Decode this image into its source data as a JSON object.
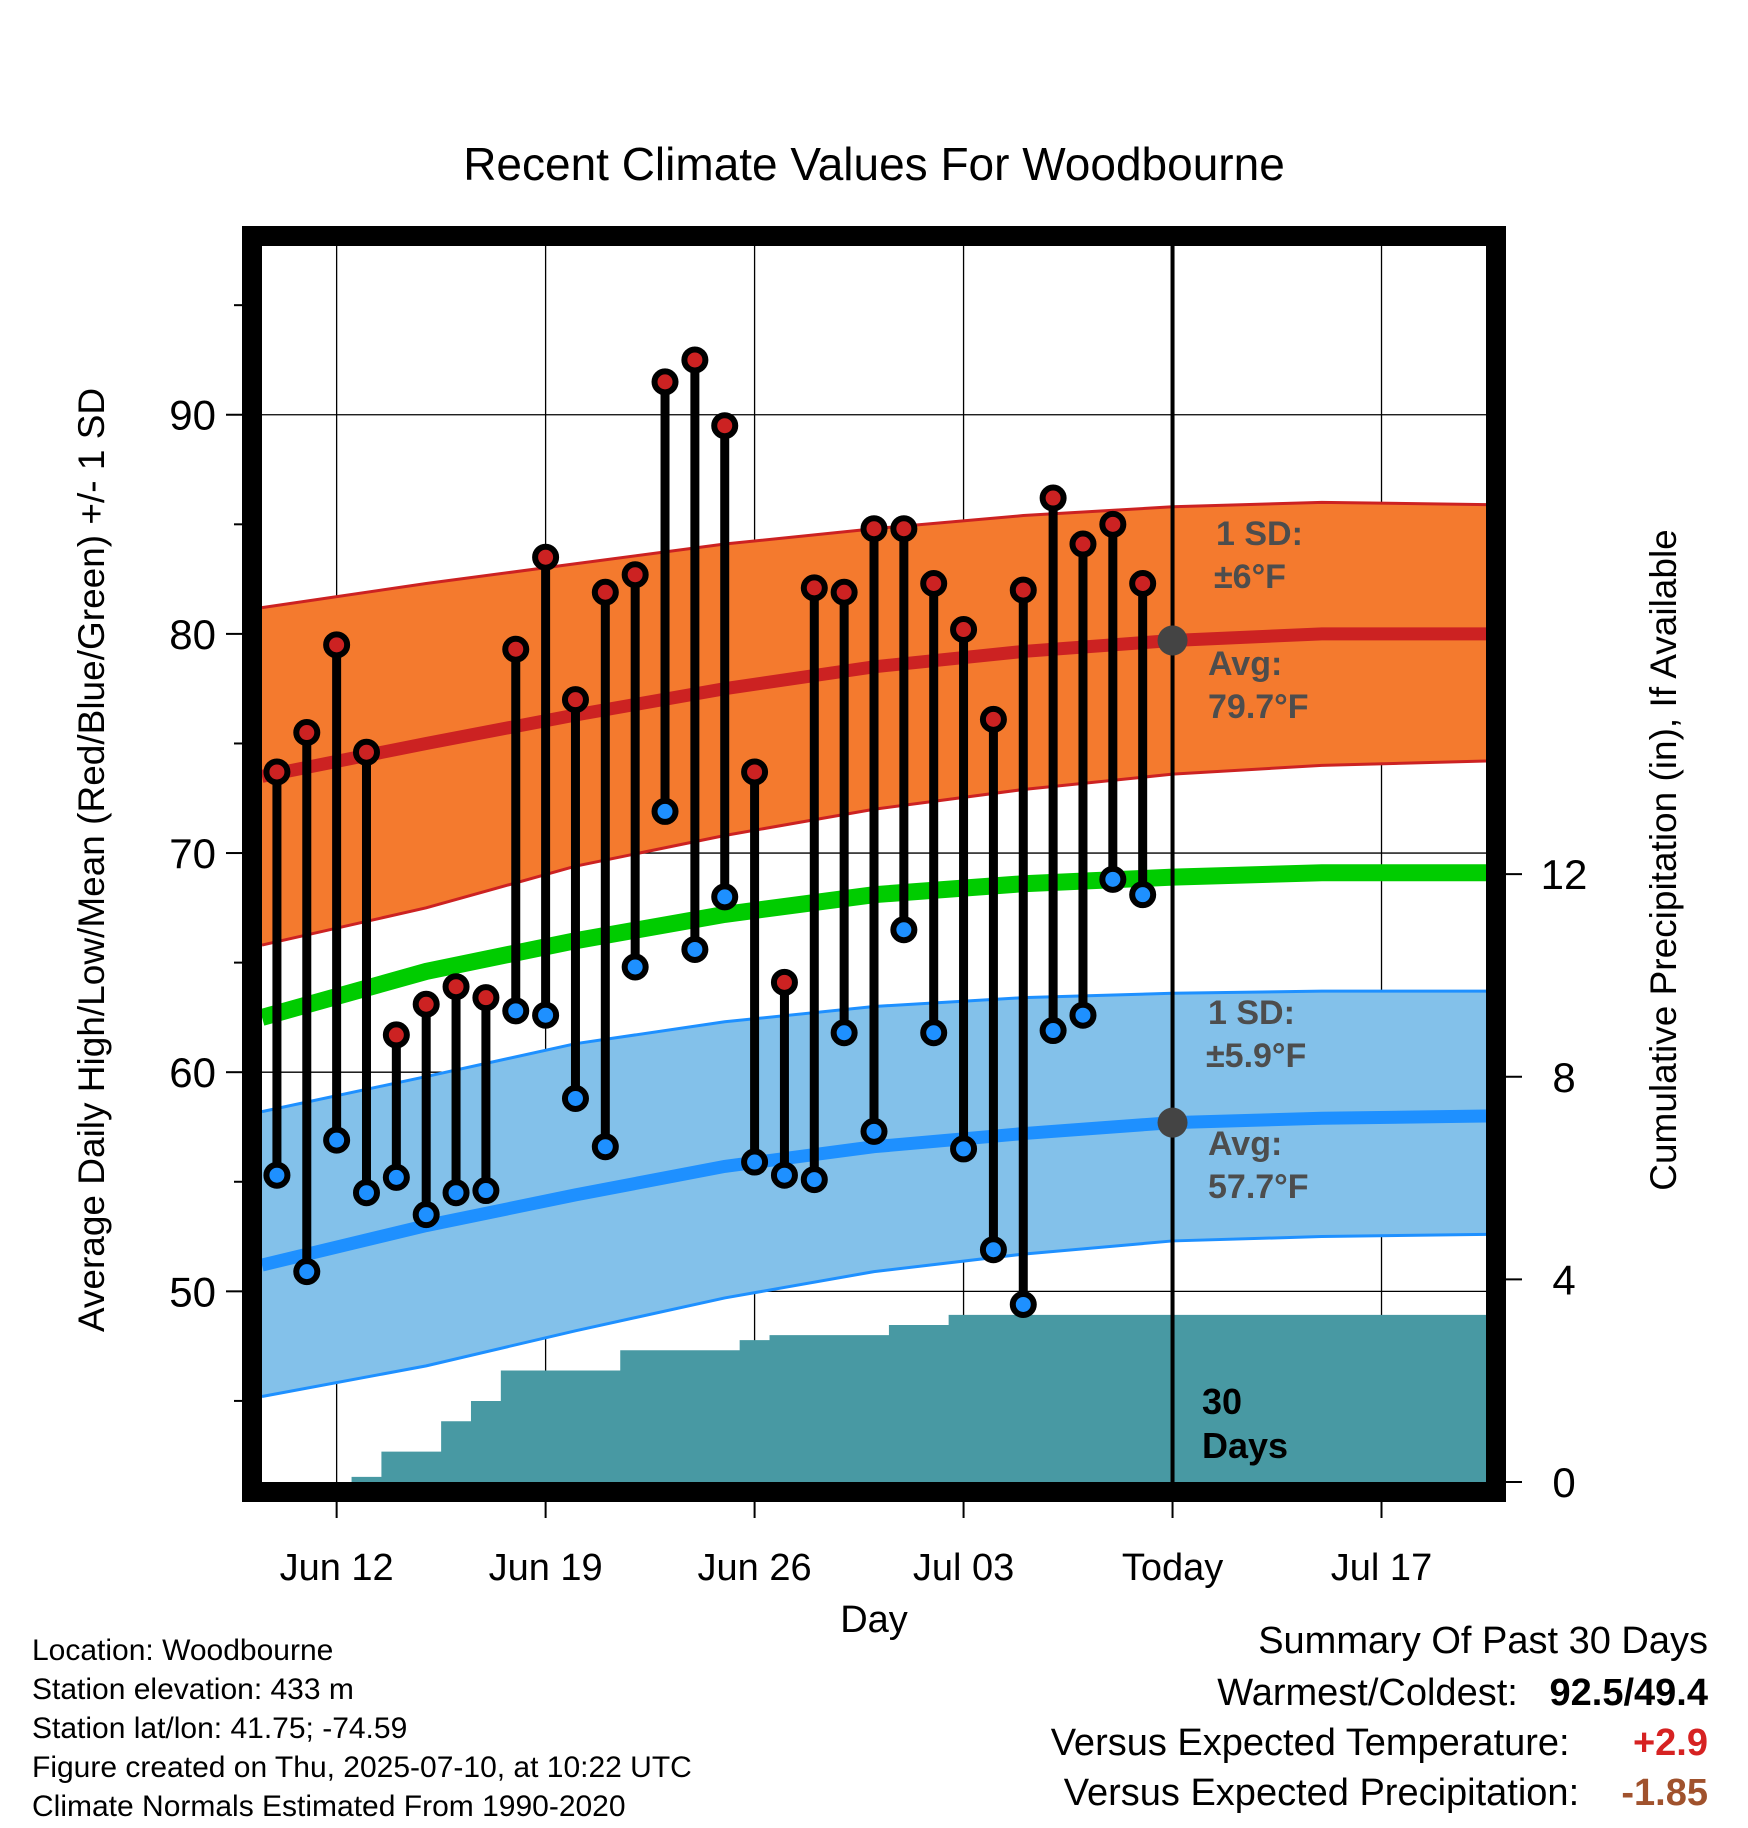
{
  "chart_data": {
    "type": "line",
    "title": "Recent Climate Values For Woodbourne",
    "xlabel": "Day",
    "ylabel": "Average Daily High/Low/Mean (Red/Blue/Green) +/- 1 SD",
    "y2label": "Cumulative Precipitation (in), If Available",
    "x_tick_labels": [
      "Jun 12",
      "Jun 19",
      "Jun 26",
      "Jul 03",
      "Today",
      "Jul 17"
    ],
    "x_tick_days": [
      0,
      7,
      14,
      21,
      28,
      35
    ],
    "x_range_days": [
      -2.5,
      38.5
    ],
    "ylim": [
      41.3,
      97.7
    ],
    "y_ticks": [
      50,
      60,
      70,
      80,
      90
    ],
    "y2lim": [
      0,
      24.4
    ],
    "y2_ticks": [
      0,
      4,
      8,
      12
    ],
    "today_day": 28,
    "days": [
      -2,
      -1,
      0,
      1,
      2,
      3,
      4,
      5,
      6,
      7,
      8,
      9,
      10,
      11,
      12,
      13,
      14,
      15,
      16,
      17,
      18,
      19,
      20,
      21,
      22,
      23,
      24,
      25,
      26,
      27
    ],
    "series": [
      {
        "name": "High",
        "values": [
          73.7,
          75.5,
          79.5,
          74.6,
          61.7,
          63.1,
          63.9,
          63.4,
          79.3,
          83.5,
          77.0,
          81.9,
          82.7,
          91.5,
          92.5,
          89.5,
          73.7,
          64.1,
          82.1,
          81.9,
          84.8,
          84.8,
          82.3,
          80.2,
          76.1,
          82.0,
          86.2,
          84.1,
          85.0,
          82.3
        ]
      },
      {
        "name": "Low",
        "values": [
          55.3,
          50.9,
          56.9,
          54.5,
          55.2,
          53.5,
          54.5,
          54.6,
          62.8,
          62.6,
          58.8,
          56.6,
          64.8,
          71.9,
          65.6,
          68.0,
          55.9,
          55.3,
          55.1,
          61.8,
          57.3,
          66.5,
          61.8,
          56.5,
          51.9,
          49.4,
          61.9,
          62.6,
          68.8,
          68.1
        ]
      }
    ],
    "normals": {
      "days": [
        -2.5,
        3,
        8,
        13,
        18,
        23,
        28,
        33,
        38.5
      ],
      "high_avg": [
        73.5,
        75.0,
        76.3,
        77.5,
        78.5,
        79.2,
        79.7,
        80.0,
        80.0
      ],
      "high_sd_upper": [
        81.2,
        82.3,
        83.2,
        84.1,
        84.8,
        85.4,
        85.8,
        86.0,
        85.9
      ],
      "high_sd_lower": [
        65.8,
        67.5,
        69.4,
        70.8,
        72.0,
        72.9,
        73.6,
        74.0,
        74.2
      ],
      "mean_avg": [
        62.5,
        64.6,
        66.0,
        67.2,
        68.1,
        68.6,
        68.9,
        69.1,
        69.1
      ],
      "low_avg": [
        51.2,
        53.0,
        54.4,
        55.7,
        56.6,
        57.2,
        57.7,
        57.9,
        58.0
      ],
      "low_sd_upper": [
        58.2,
        59.8,
        61.3,
        62.3,
        63.0,
        63.4,
        63.6,
        63.7,
        63.7
      ],
      "low_sd_lower": [
        45.2,
        46.6,
        48.2,
        49.7,
        50.9,
        51.7,
        52.3,
        52.5,
        52.6
      ]
    },
    "precipitation": {
      "days": [
        -2.5,
        0.5,
        1.5,
        2.5,
        3.5,
        4.5,
        5.5,
        6.5,
        7.5,
        8.5,
        9.5,
        10.5,
        11.5,
        12.5,
        13.5,
        14.5,
        15.5,
        16.5,
        17.5,
        18.5,
        19.5,
        20.5,
        21.5,
        38.5
      ],
      "cumulative": [
        0,
        0.1,
        0.6,
        0.6,
        1.2,
        1.6,
        2.2,
        2.2,
        2.2,
        2.2,
        2.6,
        2.6,
        2.6,
        2.6,
        2.8,
        2.9,
        2.9,
        2.9,
        2.9,
        3.1,
        3.1,
        3.3,
        3.3,
        3.3
      ]
    },
    "annotations": {
      "high_sd_label": "1 SD:",
      "high_sd_value": "±6°F",
      "high_avg_label": "Avg:",
      "high_avg_value": "79.7°F",
      "low_sd_label": "1 SD:",
      "low_sd_value": "±5.9°F",
      "low_avg_label": "Avg:",
      "low_avg_value": "57.7°F",
      "window_label_1": "30",
      "window_label_2": "Days"
    },
    "colors": {
      "high_band": "#f47a2e",
      "high_line": "#cc2222",
      "low_band": "#83c1ea",
      "low_line": "#1e90ff",
      "mean_line": "#00cc00",
      "precip": "#4899a3",
      "high_dot": "#cc2222",
      "low_dot": "#1e90ff",
      "avg_marker": "#444444",
      "annotation": "#4d4d4d"
    }
  },
  "metadata": {
    "location": "Location: Woodbourne",
    "elevation": "Station elevation: 433 m",
    "latlon": "Station lat/lon: 41.75; -74.59",
    "created": "Figure created on Thu, 2025-07-10, at 10:22 UTC",
    "normals": "Climate Normals Estimated From 1990-2020"
  },
  "summary": {
    "title": "Summary Of Past 30 Days",
    "warmest_coldest_label": "Warmest/Coldest:",
    "warmest_coldest_value": "92.5/49.4",
    "temp_label": "Versus Expected Temperature:",
    "temp_value": "+2.9",
    "temp_color": "#d62222",
    "precip_label": "Versus Expected Precipitation:",
    "precip_value": "-1.85",
    "precip_color": "#a0522d"
  }
}
